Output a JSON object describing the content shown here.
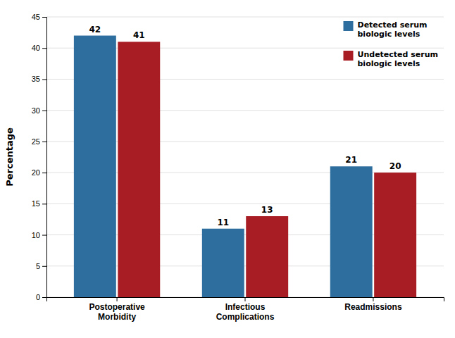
{
  "chart_data": {
    "type": "bar",
    "categories": [
      "Postoperative\nMorbidity",
      "Infectious\nComplications",
      "Readmissions"
    ],
    "series": [
      {
        "name": "Detected serum\nbiologic levels",
        "color": "#2E6E9E",
        "values": [
          42,
          11,
          21
        ]
      },
      {
        "name": "Undetected serum\nbiologic levels",
        "color": "#A81C23",
        "values": [
          41,
          13,
          20
        ]
      }
    ],
    "ylabel": "Percentage",
    "ylim": [
      0,
      45
    ],
    "yticks": [
      0,
      5,
      10,
      15,
      20,
      25,
      30,
      35,
      40,
      45
    ],
    "grid": true,
    "legend": "upper right",
    "data_labels": true
  }
}
